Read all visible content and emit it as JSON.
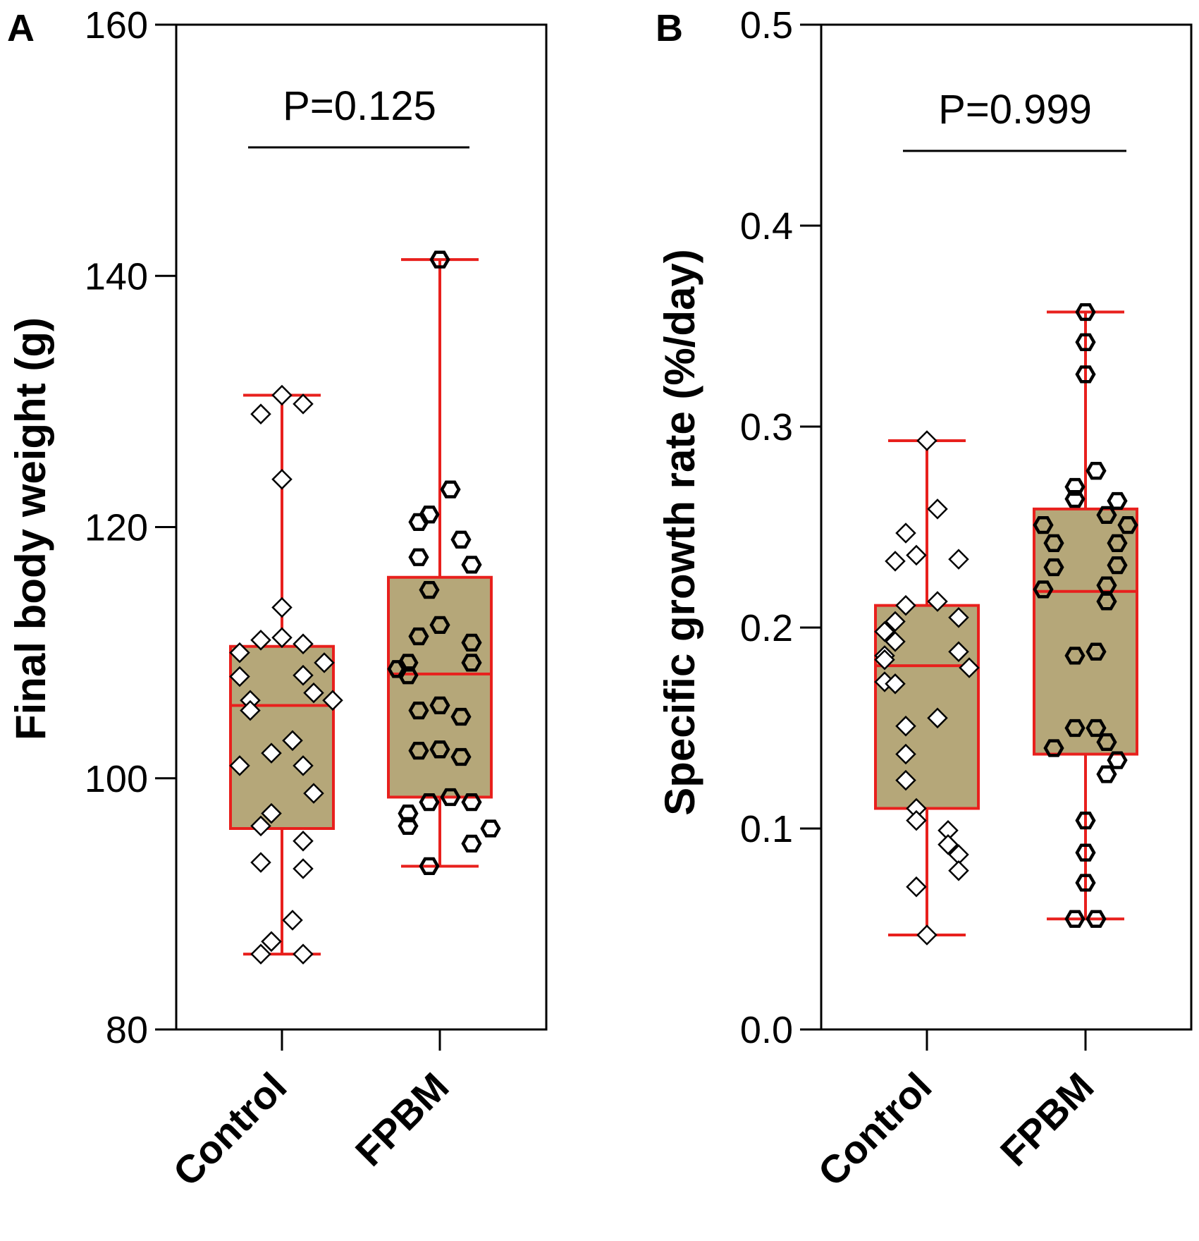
{
  "colors": {
    "box_fill": "#b5a779",
    "box_stroke": "#e8201d",
    "axis": "#000000",
    "marker_stroke": "#000000",
    "marker_fill": "#ffffff"
  },
  "chart_data": [
    {
      "panel": "A",
      "type": "box",
      "ylabel": "Final body weight (g)",
      "ylim": [
        80,
        160
      ],
      "yticks": [
        "80",
        "100",
        "120",
        "140",
        "160"
      ],
      "categories": [
        "Control",
        "FPBM"
      ],
      "significance": "P=0.125",
      "groups": [
        {
          "name": "Control",
          "marker": "diamond",
          "min": 86.0,
          "q1": 96.0,
          "median": 105.8,
          "q3": 110.5,
          "max": 130.5,
          "points": [
            130.5,
            129.0,
            129.8,
            123.8,
            113.6,
            111.2,
            111.0,
            110.7,
            110.0,
            109.2,
            108.2,
            108.1,
            106.8,
            106.2,
            106.2,
            105.4,
            103.0,
            102.0,
            101.0,
            101.0,
            98.8,
            97.2,
            96.2,
            95.0,
            93.3,
            92.8,
            88.7,
            87.0,
            86.0,
            86.0
          ]
        },
        {
          "name": "FPBM",
          "marker": "hexagon",
          "min": 93.0,
          "q1": 98.5,
          "median": 108.3,
          "q3": 116.0,
          "max": 141.3,
          "points": [
            141.3,
            123.0,
            121.0,
            120.4,
            119.0,
            117.6,
            117.0,
            115.0,
            112.2,
            111.3,
            110.8,
            109.2,
            109.2,
            108.7,
            108.2,
            105.8,
            105.4,
            104.9,
            102.3,
            102.2,
            101.7,
            98.5,
            98.1,
            98.1,
            97.2,
            96.2,
            96.0,
            94.8,
            93.0
          ]
        }
      ]
    },
    {
      "panel": "B",
      "type": "box",
      "ylabel": "Specific growth rate (%/day)",
      "ylim": [
        0.0,
        0.5
      ],
      "yticks": [
        "0.0",
        "0.1",
        "0.2",
        "0.3",
        "0.4",
        "0.5"
      ],
      "categories": [
        "Control",
        "FPBM"
      ],
      "significance": "P=0.999",
      "groups": [
        {
          "name": "Control",
          "marker": "diamond",
          "min": 0.047,
          "q1": 0.11,
          "median": 0.181,
          "q3": 0.211,
          "max": 0.293,
          "points": [
            0.293,
            0.259,
            0.247,
            0.236,
            0.234,
            0.233,
            0.213,
            0.211,
            0.205,
            0.203,
            0.198,
            0.193,
            0.188,
            0.186,
            0.184,
            0.18,
            0.173,
            0.172,
            0.155,
            0.151,
            0.137,
            0.124,
            0.11,
            0.104,
            0.099,
            0.092,
            0.087,
            0.079,
            0.071,
            0.047
          ]
        },
        {
          "name": "FPBM",
          "marker": "hexagon",
          "min": 0.055,
          "q1": 0.137,
          "median": 0.218,
          "q3": 0.259,
          "max": 0.357,
          "points": [
            0.357,
            0.342,
            0.326,
            0.278,
            0.27,
            0.264,
            0.263,
            0.256,
            0.251,
            0.251,
            0.242,
            0.242,
            0.231,
            0.23,
            0.221,
            0.219,
            0.213,
            0.188,
            0.186,
            0.15,
            0.15,
            0.143,
            0.14,
            0.134,
            0.127,
            0.104,
            0.088,
            0.073,
            0.055,
            0.055
          ]
        }
      ]
    }
  ]
}
